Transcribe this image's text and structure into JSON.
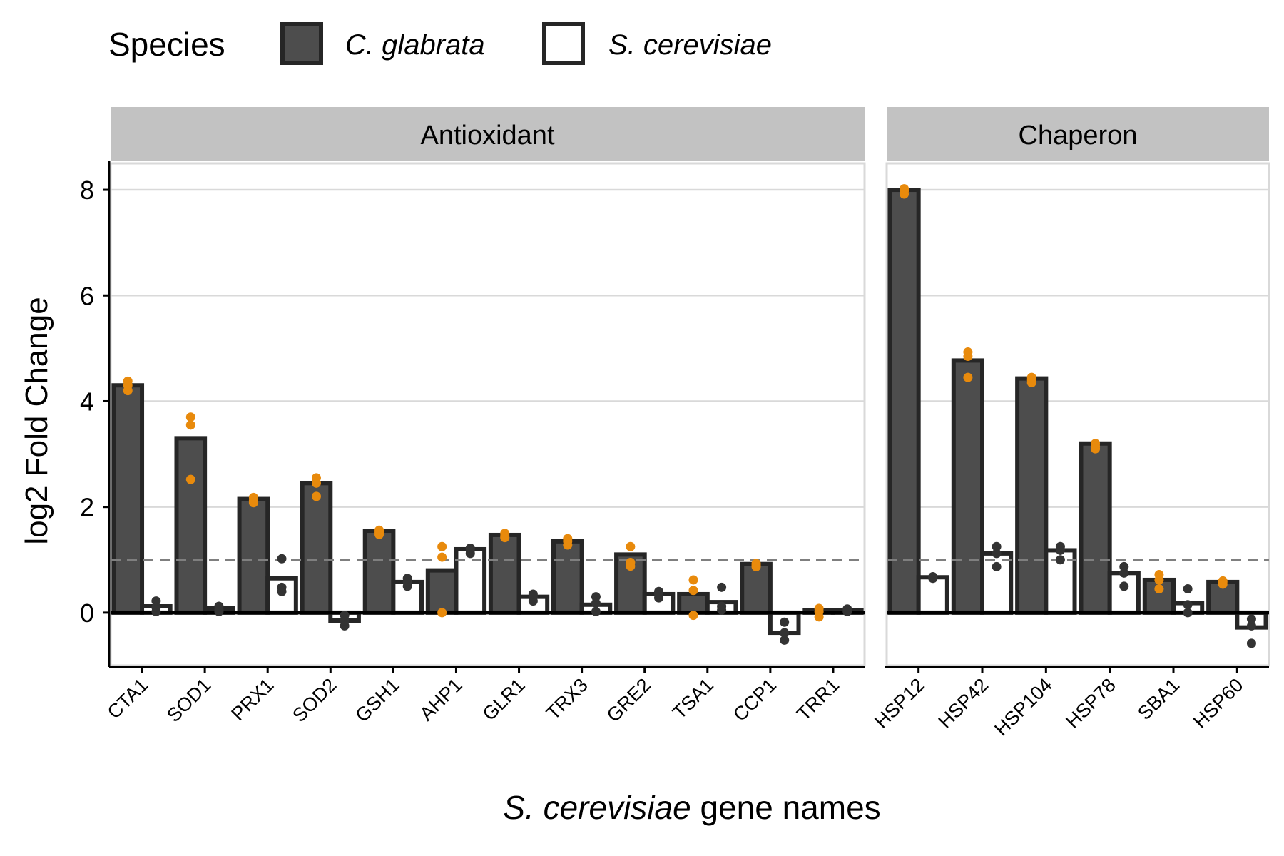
{
  "chart_data": {
    "type": "bar",
    "legend": {
      "title": "Species",
      "placement": "top",
      "entries": [
        {
          "label": "C. glabrata",
          "fill": "#4d4d4d"
        },
        {
          "label": "S. cerevisiae",
          "fill": "#ffffff"
        }
      ]
    },
    "xlabel": {
      "italic": "S. cerevisiae",
      "rest": " gene names"
    },
    "ylabel": "log2 Fold Change",
    "ylim": [
      -1,
      8.5
    ],
    "yticks": [
      "0",
      "2",
      "4",
      "6",
      "8"
    ],
    "ytick_values": [
      0,
      2,
      4,
      6,
      8
    ],
    "reference_line": 1,
    "grid": "horizontal",
    "colors": {
      "bar_fill_cg": "#4d4d4d",
      "bar_fill_sc": "#ffffff",
      "bar_outline": "#262626",
      "point_cg": "#e88a0c",
      "point_sc": "#333333",
      "strip": "#c2c2c2",
      "grid": "#d9d9d9",
      "ref_line": "#7f7f7f"
    },
    "panels": [
      {
        "title": "Antioxidant",
        "categories": [
          "CTA1",
          "SOD1",
          "PRX1",
          "SOD2",
          "GSH1",
          "AHP1",
          "GLR1",
          "TRX3",
          "GRE2",
          "TSA1",
          "CCP1",
          "TRR1"
        ],
        "series": [
          {
            "name": "C. glabrata",
            "values": [
              4.3,
              3.3,
              2.15,
              2.45,
              1.55,
              0.8,
              1.47,
              1.35,
              1.1,
              0.35,
              0.92,
              0.05
            ],
            "replicates": [
              [
                4.2,
                4.3,
                4.38
              ],
              [
                2.52,
                3.55,
                3.7
              ],
              [
                2.08,
                2.12,
                2.18
              ],
              [
                2.2,
                2.45,
                2.55
              ],
              [
                1.48,
                1.52,
                1.56
              ],
              [
                0.0,
                1.05,
                1.25
              ],
              [
                1.42,
                1.45,
                1.5
              ],
              [
                1.28,
                1.35,
                1.4
              ],
              [
                0.88,
                0.95,
                1.25
              ],
              [
                -0.05,
                0.42,
                0.62
              ],
              [
                0.87,
                0.9,
                0.93
              ],
              [
                -0.08,
                0.02,
                0.08
              ]
            ]
          },
          {
            "name": "S. cerevisiae",
            "values": [
              0.12,
              0.08,
              0.65,
              -0.15,
              0.58,
              1.2,
              0.3,
              0.15,
              0.35,
              0.2,
              -0.38,
              0.05
            ],
            "replicates": [
              [
                0.02,
                0.1,
                0.22
              ],
              [
                0.02,
                0.05,
                0.12
              ],
              [
                0.4,
                0.48,
                1.02
              ],
              [
                -0.25,
                -0.15,
                -0.05
              ],
              [
                0.5,
                0.58,
                0.65
              ],
              [
                1.12,
                1.18,
                1.22
              ],
              [
                0.22,
                0.3,
                0.35
              ],
              [
                0.02,
                0.18,
                0.3
              ],
              [
                0.28,
                0.35,
                0.4
              ],
              [
                0.05,
                0.12,
                0.48
              ],
              [
                -0.52,
                -0.38,
                -0.18
              ],
              [
                0.02,
                0.05,
                0.07
              ]
            ]
          }
        ]
      },
      {
        "title": "Chaperon",
        "categories": [
          "HSP12",
          "HSP42",
          "HSP104",
          "HSP78",
          "SBA1",
          "HSP60"
        ],
        "series": [
          {
            "name": "C. glabrata",
            "values": [
              8.0,
              4.77,
              4.43,
              3.2,
              0.62,
              0.58
            ],
            "replicates": [
              [
                7.92,
                7.98,
                8.02
              ],
              [
                4.45,
                4.85,
                4.93
              ],
              [
                4.35,
                4.4,
                4.45
              ],
              [
                3.1,
                3.15,
                3.2
              ],
              [
                0.45,
                0.62,
                0.72
              ],
              [
                0.54,
                0.58,
                0.6
              ]
            ]
          },
          {
            "name": "S. cerevisiae",
            "values": [
              0.67,
              1.12,
              1.18,
              0.75,
              0.18,
              -0.28
            ],
            "replicates": [
              [
                0.65,
                0.67,
                0.68
              ],
              [
                0.87,
                1.12,
                1.25
              ],
              [
                1.0,
                1.18,
                1.25
              ],
              [
                0.5,
                0.75,
                0.87
              ],
              [
                0.0,
                0.15,
                0.45
              ],
              [
                -0.58,
                -0.25,
                -0.12
              ]
            ]
          }
        ]
      }
    ]
  }
}
